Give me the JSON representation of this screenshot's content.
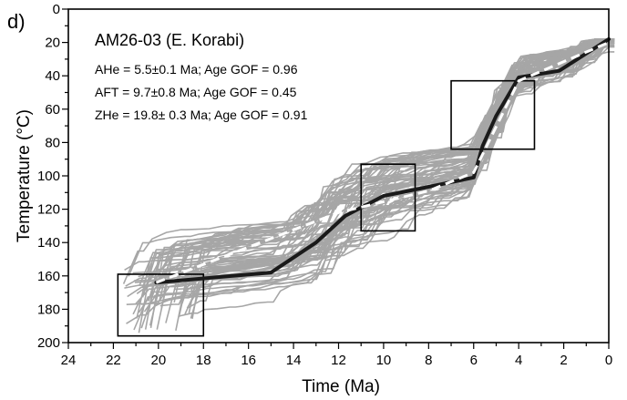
{
  "chart_data": {
    "type": "line",
    "panel_label": "d)",
    "title": "AM26-03 (E. Korabi)",
    "annotations": [
      "AHe = 5.5±0.1 Ma; Age GOF = 0.96",
      "AFT = 9.7±0.8 Ma; Age GOF = 0.45",
      "ZHe = 19.8± 0.3 Ma; Age GOF = 0.91"
    ],
    "xlabel": "Time (Ma)",
    "ylabel": "Temperature (°C)",
    "xlim": [
      24,
      0
    ],
    "ylim": [
      0,
      200
    ],
    "x_reversed": true,
    "y_reversed": true,
    "x_ticks": [
      24,
      22,
      20,
      18,
      16,
      14,
      12,
      10,
      8,
      6,
      4,
      2,
      0
    ],
    "y_ticks": [
      0,
      20,
      40,
      60,
      80,
      100,
      120,
      140,
      160,
      180,
      200
    ],
    "colors": {
      "envelope": "#a6a6a6",
      "best_fit": "#1a1a1a",
      "expected": "#ffffff"
    },
    "constraint_boxes": [
      {
        "x": [
          21.8,
          18.0
        ],
        "y": [
          159,
          196
        ]
      },
      {
        "x": [
          11.0,
          8.6
        ],
        "y": [
          93,
          133
        ]
      },
      {
        "x": [
          7.0,
          3.3
        ],
        "y": [
          43,
          84
        ]
      }
    ],
    "series": [
      {
        "role": "best-fit",
        "x": [
          20.1,
          15.0,
          13.0,
          11.7,
          10.0,
          8.5,
          6.0,
          5.6,
          5.0,
          4.0,
          2.2,
          0
        ],
        "y": [
          164,
          158,
          140,
          124,
          112,
          108,
          101,
          82,
          64,
          41,
          37,
          18
        ]
      },
      {
        "role": "expected",
        "x": [
          20.1,
          12.0,
          8.0,
          6.0,
          4.0,
          0
        ],
        "y": [
          164,
          122,
          109,
          98,
          43,
          20
        ]
      }
    ]
  }
}
